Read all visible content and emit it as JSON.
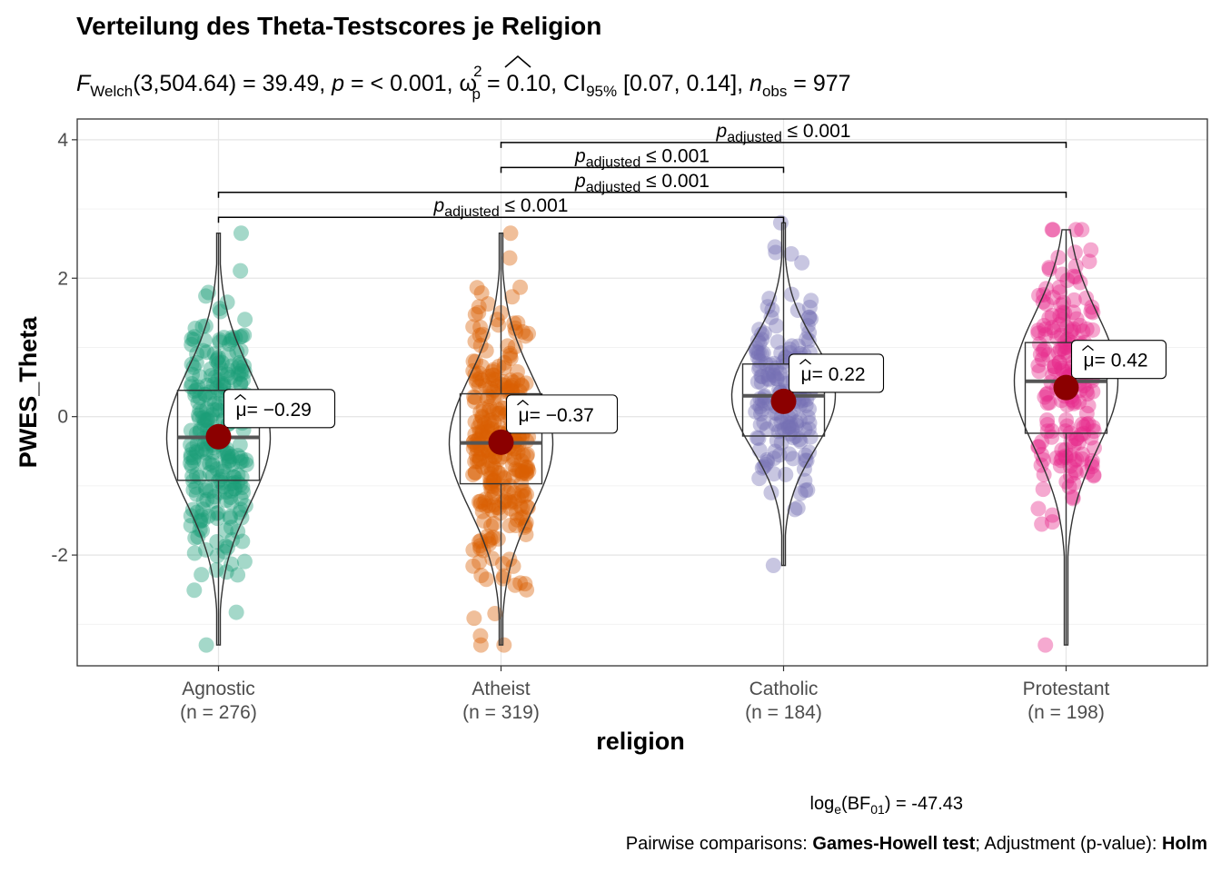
{
  "title": "Verteilung des Theta-Testscores je Religion",
  "subtitle": {
    "stat_symbol": "F",
    "stat_sub": "Welch",
    "stat_value": "(3,504.64) = 39.49, ",
    "p_symbol": "p",
    "p_value": " = < 0.001, ",
    "effect_symbol": "ω",
    "effect_sup": "2",
    "effect_sub": "p",
    "effect_value": " = 0.10, CI",
    "ci_sub": "95%",
    "ci_value": " [0.07, 0.14], ",
    "n_symbol": "n",
    "n_sub": "obs",
    "n_value": " = 977"
  },
  "caption": {
    "bf_prefix": "log",
    "bf_sub_e": "e",
    "bf_mid": "(BF",
    "bf_sub": "01",
    "bf_value": ") = -47.43",
    "pairwise_prefix": "Pairwise comparisons: ",
    "pairwise_test": "Games-Howell test",
    "pairwise_mid": "; Adjustment (p-value): ",
    "pairwise_adj": "Holm"
  },
  "chart_data": {
    "type": "violin-box-scatter",
    "xlabel": "religion",
    "ylabel": "PWES_Theta",
    "ylim": [
      -3.6,
      4.3
    ],
    "yticks": [
      -2,
      0,
      2,
      4
    ],
    "grid": true,
    "categories": [
      {
        "name": "Agnostic",
        "n_label": "(n = 276)",
        "n": 276,
        "color": "#1B9E77",
        "mean": -0.29,
        "mean_label": "= −0.29",
        "median": -0.3,
        "q1": -0.92,
        "q3": 0.38,
        "min": -3.3,
        "max": 2.65
      },
      {
        "name": "Atheist",
        "n_label": "(n = 319)",
        "n": 319,
        "color": "#D95F02",
        "mean": -0.37,
        "mean_label": "= −0.37",
        "median": -0.38,
        "q1": -0.97,
        "q3": 0.33,
        "min": -3.3,
        "max": 2.65
      },
      {
        "name": "Catholic",
        "n_label": "(n = 184)",
        "n": 184,
        "color": "#7570B3",
        "mean": 0.22,
        "mean_label": "= 0.22",
        "median": 0.3,
        "q1": -0.28,
        "q3": 0.76,
        "min": -2.15,
        "max": 2.8
      },
      {
        "name": "Protestant",
        "n_label": "(n = 198)",
        "n": 198,
        "color": "#E7298A",
        "mean": 0.42,
        "mean_label": "= 0.42",
        "median": 0.51,
        "q1": -0.24,
        "q3": 1.07,
        "min": -3.3,
        "max": 2.7
      }
    ],
    "mean_symbol": "μ",
    "mean_color": "#8B0000",
    "pairwise": [
      {
        "group1": "Agnostic",
        "group2": "Catholic",
        "y": 2.88,
        "label_p": "p",
        "label_sub": "adjusted",
        "label_rest": " ≤ 0.001"
      },
      {
        "group1": "Agnostic",
        "group2": "Protestant",
        "y": 3.24,
        "label_p": "p",
        "label_sub": "adjusted",
        "label_rest": " ≤ 0.001"
      },
      {
        "group1": "Atheist",
        "group2": "Catholic",
        "y": 3.6,
        "label_p": "p",
        "label_sub": "adjusted",
        "label_rest": " ≤ 0.001"
      },
      {
        "group1": "Atheist",
        "group2": "Protestant",
        "y": 3.96,
        "label_p": "p",
        "label_sub": "adjusted",
        "label_rest": " ≤ 0.001"
      }
    ]
  }
}
